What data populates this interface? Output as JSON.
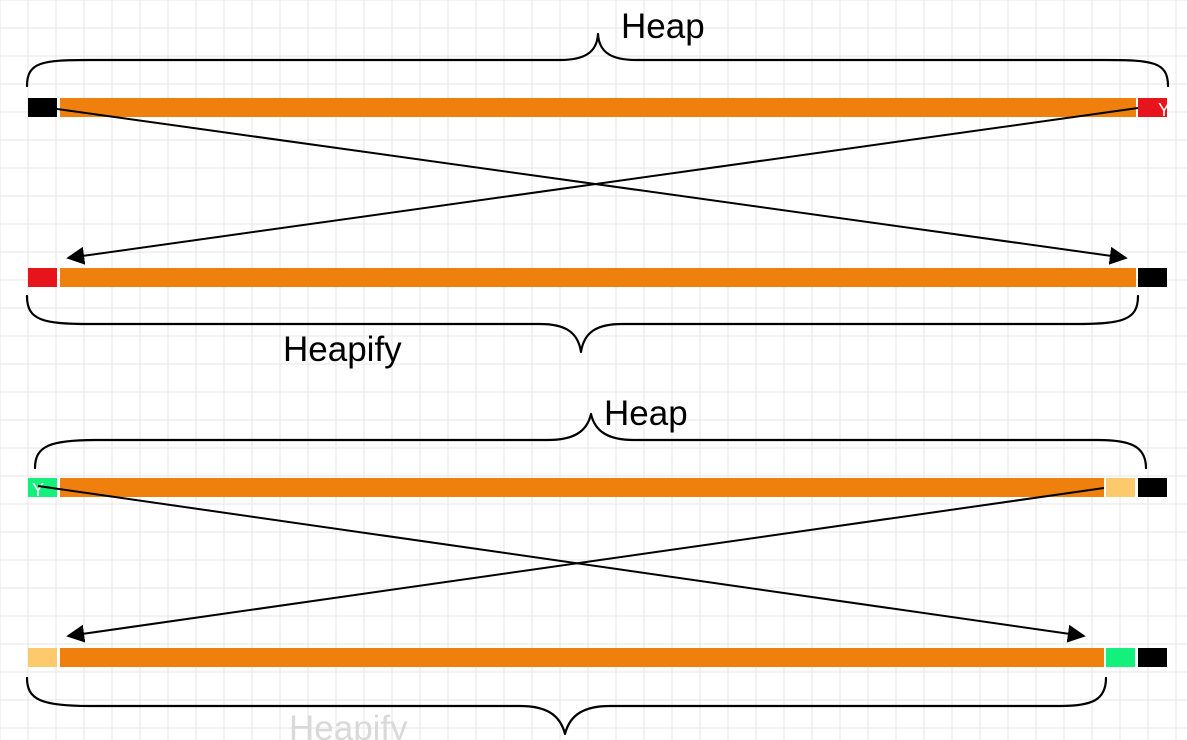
{
  "colors": {
    "background": "#ffffff",
    "grid": "#e6e6e6",
    "array_body": "#f0800d",
    "root_block": "#000000",
    "last_element_red": "#e8141c",
    "last_element_green": "#14f07c",
    "second_last_yellow": "#fcc96c",
    "arrow": "#000000"
  },
  "section1": {
    "heap_label": "Heap",
    "heapify_label": "Heapify",
    "top_end_marker": "Y"
  },
  "section2": {
    "heap_label": "Heap",
    "heapify_label": "Heapify",
    "top_start_marker": "Y"
  }
}
